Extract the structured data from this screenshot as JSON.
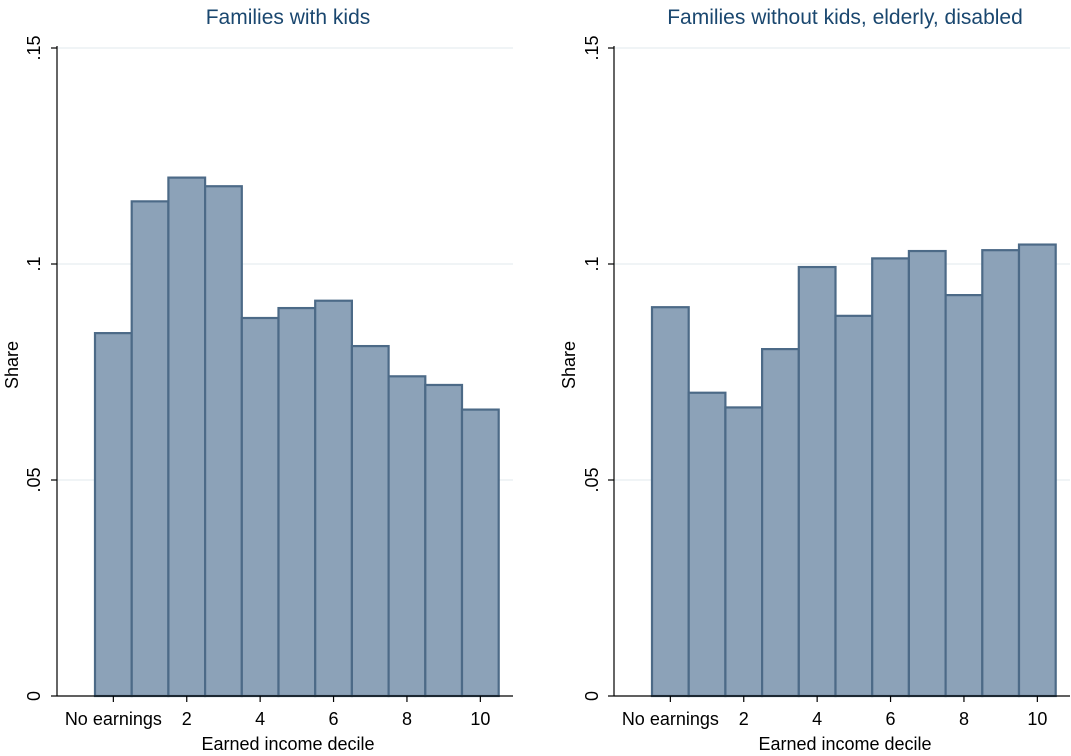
{
  "chart_data": [
    {
      "type": "bar",
      "title": "Families with kids",
      "xlabel": "Earned income decile",
      "ylabel": "Share",
      "ylim": [
        0,
        0.15
      ],
      "yticks": [
        {
          "value": 0,
          "label": "0"
        },
        {
          "value": 0.05,
          "label": ".05"
        },
        {
          "value": 0.1,
          "label": ".1"
        },
        {
          "value": 0.15,
          "label": ".15"
        }
      ],
      "grid": true,
      "xticks": [
        {
          "value": 0,
          "label": "No earnings"
        },
        {
          "value": 2,
          "label": "2"
        },
        {
          "value": 4,
          "label": "4"
        },
        {
          "value": 6,
          "label": "6"
        },
        {
          "value": 8,
          "label": "8"
        },
        {
          "value": 10,
          "label": "10"
        }
      ],
      "x": [
        0,
        1,
        2,
        3,
        4,
        5,
        6,
        7,
        8,
        9,
        10
      ],
      "values": [
        0.084,
        0.1145,
        0.12,
        0.118,
        0.0875,
        0.0898,
        0.0915,
        0.081,
        0.074,
        0.072,
        0.0663
      ]
    },
    {
      "type": "bar",
      "title": "Families without kids, elderly, disabled",
      "xlabel": "Earned income decile",
      "ylabel": "Share",
      "ylim": [
        0,
        0.15
      ],
      "yticks": [
        {
          "value": 0,
          "label": "0"
        },
        {
          "value": 0.05,
          "label": ".05"
        },
        {
          "value": 0.1,
          "label": ".1"
        },
        {
          "value": 0.15,
          "label": ".15"
        }
      ],
      "grid": true,
      "xticks": [
        {
          "value": 0,
          "label": "No earnings"
        },
        {
          "value": 2,
          "label": "2"
        },
        {
          "value": 4,
          "label": "4"
        },
        {
          "value": 6,
          "label": "6"
        },
        {
          "value": 8,
          "label": "8"
        },
        {
          "value": 10,
          "label": "10"
        }
      ],
      "x": [
        0,
        1,
        2,
        3,
        4,
        5,
        6,
        7,
        8,
        9,
        10
      ],
      "values": [
        0.09,
        0.0702,
        0.0668,
        0.0803,
        0.0993,
        0.088,
        0.1013,
        0.103,
        0.0928,
        0.1032,
        0.1045
      ]
    }
  ]
}
